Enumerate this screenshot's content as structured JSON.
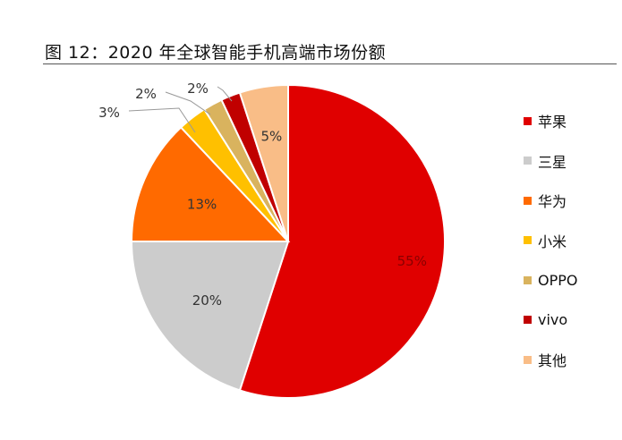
{
  "figure_title": "图 12：2020 年全球智能手机高端市场份额",
  "chart_data": {
    "type": "pie",
    "title": "",
    "labels": [
      "苹果",
      "三星",
      "华为",
      "小米",
      "OPPO",
      "vivo",
      "其他"
    ],
    "values": [
      55,
      20,
      13,
      3,
      2,
      2,
      5
    ],
    "value_labels": [
      "55%",
      "20%",
      "13%",
      "3%",
      "2%",
      "2%",
      "5%"
    ],
    "colors": [
      "#E00000",
      "#CCCCCC",
      "#FF6A00",
      "#FFC000",
      "#D9B35E",
      "#C00000",
      "#F9BD87"
    ],
    "start_angle_deg": 0,
    "direction": "clockwise",
    "legend_position": "right"
  }
}
